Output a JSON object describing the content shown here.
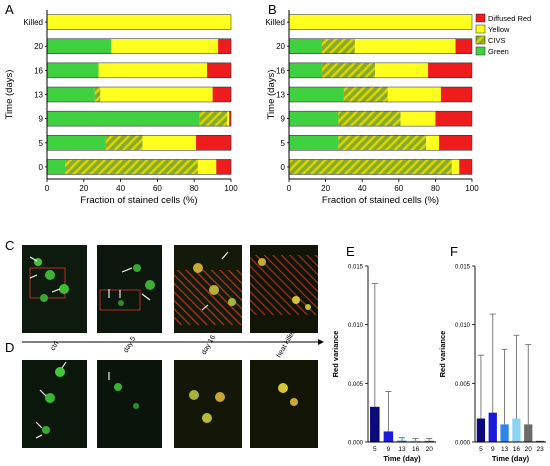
{
  "colors": {
    "green": "#3fd13f",
    "yellow": "#ffff1e",
    "red": "#ee1c1c",
    "civs": "#8aa82a",
    "civs_stripe": "#d7d700",
    "axis": "#000000"
  },
  "panels": {
    "A": "A",
    "B": "B",
    "C": "C",
    "D": "D",
    "E": "E",
    "F": "F"
  },
  "microscopy": {
    "icons": [
      "micrograph-ctrl",
      "micrograph-day5",
      "micrograph-day16",
      "micrograph-heat-killed"
    ],
    "labels": [
      "ctrl",
      "day 5",
      "day 16",
      "heat killed"
    ]
  },
  "chart_data": [
    {
      "panel": "A",
      "type": "bar",
      "orientation": "horizontal-stacked",
      "categories": [
        "Killed",
        "20",
        "16",
        "13",
        "9",
        "5",
        "0"
      ],
      "series": [
        {
          "name": "Green",
          "values": [
            0,
            35,
            28,
            26,
            83,
            32,
            10
          ]
        },
        {
          "name": "CIVS",
          "values": [
            0,
            0,
            0,
            3,
            15,
            20,
            72
          ]
        },
        {
          "name": "Yellow",
          "values": [
            100,
            58,
            59,
            61,
            1,
            29,
            10
          ]
        },
        {
          "name": "Diffused Red",
          "values": [
            0,
            7,
            13,
            10,
            1,
            19,
            8
          ]
        }
      ],
      "xlabel": "Fraction of stained cells (%)",
      "ylabel": "Time (days)",
      "xticks": [
        "0",
        "20",
        "40",
        "60",
        "80",
        "100"
      ],
      "xlim": [
        0,
        100
      ]
    },
    {
      "panel": "B",
      "type": "bar",
      "orientation": "horizontal-stacked",
      "categories": [
        "Killed",
        "20",
        "16",
        "13",
        "9",
        "5",
        "0"
      ],
      "series": [
        {
          "name": "Green",
          "values": [
            0,
            18,
            18,
            30,
            27,
            27,
            0
          ]
        },
        {
          "name": "CIVS",
          "values": [
            0,
            18,
            29,
            24,
            34,
            48,
            89
          ]
        },
        {
          "name": "Yellow",
          "values": [
            100,
            55,
            29,
            29,
            19,
            7,
            4
          ]
        },
        {
          "name": "Diffused Red",
          "values": [
            0,
            9,
            24,
            17,
            20,
            18,
            7
          ]
        }
      ],
      "legend": [
        "Diffused Red",
        "Yellow",
        "CIVS",
        "Green"
      ],
      "legend_position": "top-right",
      "xlabel": "Fraction of stained cells (%)",
      "ylabel": "Time (days)",
      "xticks": [
        "0",
        "20",
        "40",
        "60",
        "80",
        "100"
      ],
      "xlim": [
        0,
        100
      ]
    },
    {
      "panel": "E",
      "type": "bar",
      "categories": [
        "5",
        "9",
        "13",
        "16",
        "20"
      ],
      "values": [
        0.003,
        0.0009,
        0.00012,
        0.0001,
        0.0001
      ],
      "errors": [
        0.0105,
        0.0034,
        0.00025,
        0.0002,
        0.0002
      ],
      "bar_colors": [
        "#0a0a7a",
        "#1a1ad8",
        "#2f86e8",
        "#8ad3f3",
        "#6b6b6b"
      ],
      "xlabel": "Time (day)",
      "ylabel": "Red variance",
      "yticks": [
        "0.000",
        "0.005",
        "0.010",
        "0.015"
      ],
      "ylim": [
        0,
        0.015
      ]
    },
    {
      "panel": "F",
      "type": "bar",
      "categories": [
        "5",
        "9",
        "13",
        "16",
        "20",
        "23"
      ],
      "values": [
        0.002,
        0.0025,
        0.0015,
        0.002,
        0.0015,
        0.0001
      ],
      "errors": [
        0.0054,
        0.0084,
        0.0064,
        0.0071,
        0.0068,
        0.0
      ],
      "bar_colors": [
        "#0a0a7a",
        "#1a1ad8",
        "#2f86e8",
        "#8ad3f3",
        "#6b6b6b",
        "#555555"
      ],
      "xlabel": "Time (day)",
      "ylabel": "Red variance",
      "yticks": [
        "0.000",
        "0.005",
        "0.010",
        "0.015"
      ],
      "ylim": [
        0,
        0.015
      ]
    }
  ]
}
